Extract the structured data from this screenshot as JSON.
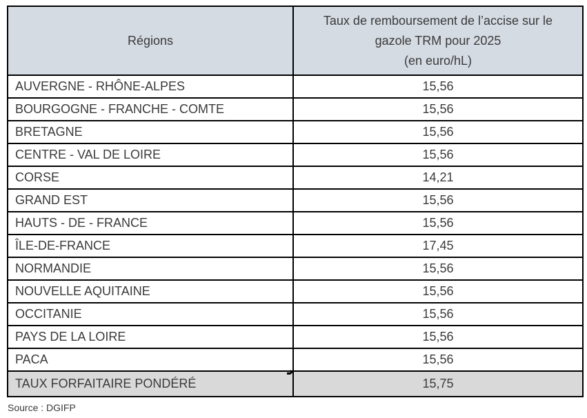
{
  "table": {
    "header": {
      "regions_label": "Régions",
      "rate_line1": "Taux de remboursement de l’accise sur le",
      "rate_line2": "gazole TRM pour 2025",
      "rate_line3": "(en euro/hL)"
    },
    "rows": [
      {
        "region": "AUVERGNE - RHÔNE-ALPES",
        "value": "15,56"
      },
      {
        "region": "BOURGOGNE - FRANCHE - COMTE",
        "value": "15,56"
      },
      {
        "region": "BRETAGNE",
        "value": "15,56"
      },
      {
        "region": "CENTRE - VAL DE LOIRE",
        "value": "15,56"
      },
      {
        "region": "CORSE",
        "value": "14,21"
      },
      {
        "region": "GRAND EST",
        "value": "15,56"
      },
      {
        "region": "HAUTS - DE - FRANCE",
        "value": "15,56"
      },
      {
        "region": "ÎLE-DE-FRANCE",
        "value": "17,45"
      },
      {
        "region": "NORMANDIE",
        "value": "15,56"
      },
      {
        "region": "NOUVELLE AQUITAINE",
        "value": "15,56"
      },
      {
        "region": "OCCITANIE",
        "value": "15,56"
      },
      {
        "region": "PAYS DE LA LOIRE",
        "value": "15,56"
      },
      {
        "region": "PACA",
        "value": "15,56"
      }
    ],
    "footer": {
      "label": "TAUX FORFAITAIRE PONDÉRÉ",
      "value": "15,75"
    }
  },
  "source_note": "Source : DGIFP",
  "colors": {
    "header_bg": "#d5dbe3",
    "footer_bg": "#d9d9d9",
    "border": "#000000",
    "text": "#3a3a3a",
    "page_bg": "#ffffff"
  }
}
